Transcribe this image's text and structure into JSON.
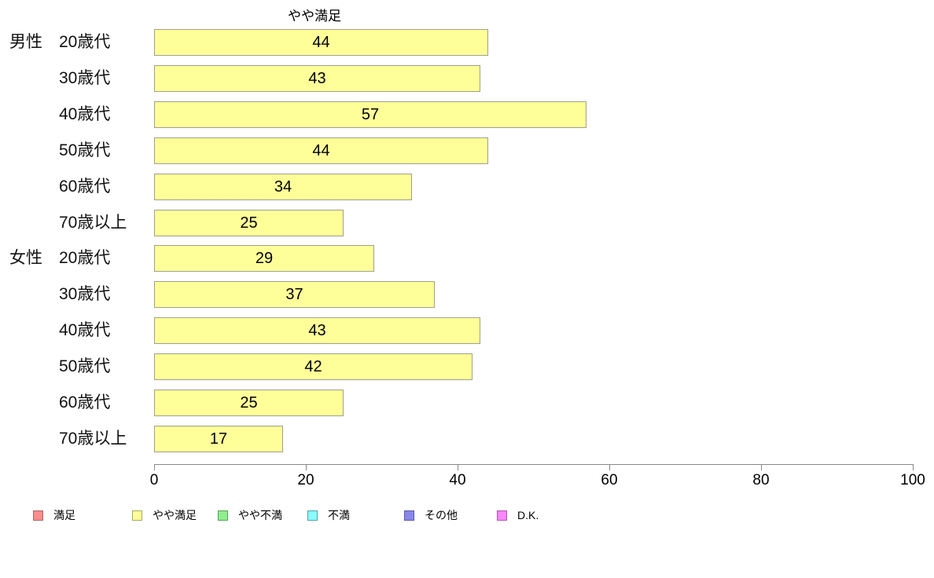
{
  "title": "やや満足",
  "chart_data": {
    "type": "bar",
    "orientation": "horizontal",
    "title": "やや満足",
    "group_labels": [
      "男性",
      "",
      "",
      "",
      "",
      "",
      "女性",
      "",
      "",
      "",
      "",
      ""
    ],
    "categories": [
      "20歳代",
      "30歳代",
      "40歳代",
      "50歳代",
      "60歳代",
      "70歳以上",
      "20歳代",
      "30歳代",
      "40歳代",
      "50歳代",
      "60歳代",
      "70歳以上"
    ],
    "values": [
      44,
      43,
      57,
      44,
      34,
      25,
      29,
      37,
      43,
      42,
      25,
      17
    ],
    "series_name": "やや満足",
    "xlabel": "",
    "ylabel": "",
    "xlim": [
      0,
      100
    ],
    "x_ticks": [
      0,
      20,
      40,
      60,
      80,
      100
    ],
    "grid": false,
    "bar_color": "#ffff99",
    "bar_border_color": "#a0a090",
    "legend_position": "bottom",
    "legend": [
      {
        "label": "満足",
        "color": "#ff8c8c",
        "border": "#a06868"
      },
      {
        "label": "やや満足",
        "color": "#ffff99",
        "border": "#a8a868"
      },
      {
        "label": "やや不満",
        "color": "#90ee8c",
        "border": "#58a058"
      },
      {
        "label": "不満",
        "color": "#87ffff",
        "border": "#58a0a8"
      },
      {
        "label": "その他",
        "color": "#8888ea",
        "border": "#5858a8"
      },
      {
        "label": "D.K.",
        "color": "#ff85ff",
        "border": "#a858a8"
      }
    ]
  }
}
